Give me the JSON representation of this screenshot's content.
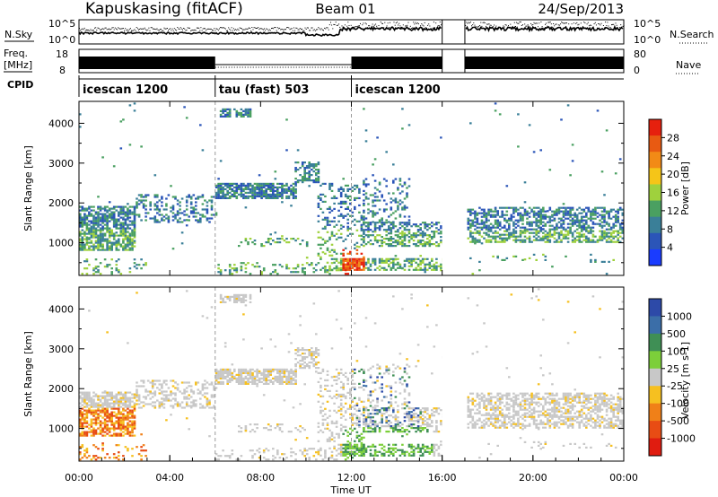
{
  "header": {
    "station": "Kapuskasing (fitACF)",
    "beam": "Beam 01",
    "date": "24/Sep/2013"
  },
  "top_panels": {
    "nsky_label": "N.Sky",
    "nsearch_label": "N.Search",
    "noise_ticks": [
      "10^5",
      "10^0"
    ],
    "freq_label_1": "Freq.",
    "freq_label_2": "[MHz]",
    "freq_ticks": [
      "18",
      "8"
    ],
    "nave_label": "Nave",
    "nave_ticks": [
      "80",
      "0"
    ],
    "cpid_label": "CPID",
    "cpid_segments": [
      {
        "label": "icescan 1200",
        "start_h": 0,
        "end_h": 6
      },
      {
        "label": "tau (fast) 503",
        "start_h": 6,
        "end_h": 12
      },
      {
        "label": "icescan 1200",
        "start_h": 12,
        "end_h": 24
      }
    ]
  },
  "colors": {
    "power_scale": [
      "#1a3cff",
      "#2b55b8",
      "#3a7f98",
      "#4aa061",
      "#9fd13d",
      "#f5c518",
      "#f28a16",
      "#e85a12",
      "#e6200e"
    ],
    "velocity_scale": [
      "#2d4aa8",
      "#3b6ea8",
      "#3f8f55",
      "#7ccf3a",
      "#c8c8c8",
      "#f6c020",
      "#f08018",
      "#e84c14",
      "#e01c10"
    ]
  },
  "chart_data": [
    {
      "type": "heatmap",
      "title": "Power",
      "xlabel": "",
      "ylabel": "Slant Range [km]",
      "xlim": [
        0,
        24
      ],
      "ylim": [
        180,
        4550
      ],
      "yticks": [
        1000,
        2000,
        3000,
        4000
      ],
      "ytick_labels": [
        "1000",
        "2000",
        "3000",
        "4000"
      ],
      "colorbar_label": "Power [dB]",
      "colorbar_ticks": [
        "4",
        "8",
        "12",
        "16",
        "20",
        "24",
        "28"
      ],
      "colorbar_range": [
        0,
        30
      ],
      "data_gap_hours": [
        16.0,
        17.0
      ]
    },
    {
      "type": "heatmap",
      "title": "Velocity",
      "xlabel": "Time UT",
      "ylabel": "Slant Range [km]",
      "xlim": [
        0,
        24
      ],
      "ylim": [
        180,
        4550
      ],
      "xticks": [
        "00:00",
        "04:00",
        "08:00",
        "12:00",
        "16:00",
        "20:00",
        "00:00"
      ],
      "yticks": [
        1000,
        2000,
        3000,
        4000
      ],
      "ytick_labels": [
        "1000",
        "2000",
        "3000",
        "4000"
      ],
      "colorbar_label": "Velocity [m s-1]",
      "colorbar_ticks": [
        "1000",
        "500",
        "100",
        "25",
        "-25",
        "-100",
        "-500",
        "-1000"
      ],
      "data_gap_hours": [
        16.0,
        17.0
      ]
    }
  ]
}
